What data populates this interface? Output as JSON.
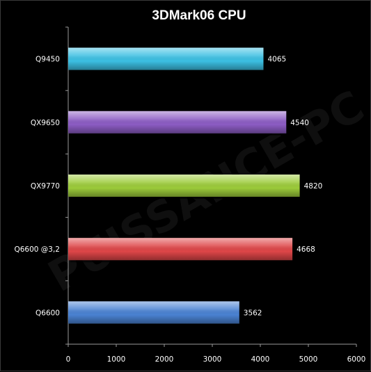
{
  "chart_data": {
    "type": "bar",
    "orientation": "horizontal",
    "title": "3DMark06 CPU",
    "categories": [
      "Q9450",
      "QX9650",
      "QX9770",
      "Q6600 @3,2",
      "Q6600"
    ],
    "values": [
      4065,
      4540,
      4820,
      4668,
      3562
    ],
    "colors": [
      "#3cc0e3",
      "#8c5cc4",
      "#9ccb3a",
      "#de4648",
      "#4a82d2"
    ],
    "xlim": [
      0,
      6000
    ],
    "xticks": [
      0,
      1000,
      2000,
      3000,
      4000,
      5000,
      6000
    ],
    "grid": false,
    "legend": "none"
  },
  "watermark": "PUISSANCE-PC"
}
